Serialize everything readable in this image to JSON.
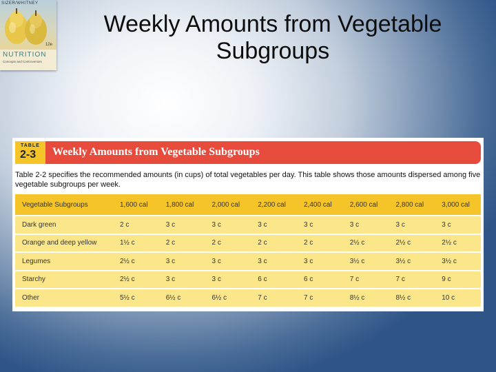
{
  "book": {
    "authors": "SIZER/WHITNEY",
    "title": "NUTRITION",
    "subtitle": "Concepts and Controversies",
    "edition": "12e"
  },
  "slide": {
    "title": "Weekly Amounts from Vegetable Subgroups"
  },
  "table": {
    "badge_label": "TABLE",
    "badge_number": "2-3",
    "title": "Weekly Amounts from Vegetable Subgroups",
    "description": "Table 2-2 specifies the recommended amounts (in cups) of total vegetables per day. This table shows those amounts dispersed among five vegetable subgroups per week.",
    "columns": [
      "Vegetable Subgroups",
      "1,600 cal",
      "1,800 cal",
      "2,000 cal",
      "2,200 cal",
      "2,400 cal",
      "2,600 cal",
      "2,800 cal",
      "3,000 cal"
    ],
    "rows": [
      [
        "Dark green",
        "2 c",
        "3 c",
        "3 c",
        "3 c",
        "3 c",
        "3 c",
        "3 c",
        "3 c"
      ],
      [
        "Orange and deep yellow",
        "1½ c",
        "2 c",
        "2 c",
        "2 c",
        "2 c",
        "2½ c",
        "2½ c",
        "2½ c"
      ],
      [
        "Legumes",
        "2½ c",
        "3 c",
        "3 c",
        "3 c",
        "3 c",
        "3½ c",
        "3½ c",
        "3½ c"
      ],
      [
        "Starchy",
        "2½ c",
        "3 c",
        "3 c",
        "6 c",
        "6 c",
        "7 c",
        "7 c",
        "9 c"
      ],
      [
        "Other",
        "5½ c",
        "6½ c",
        "6½ c",
        "7 c",
        "7 c",
        "8½ c",
        "8½ c",
        "10 c"
      ]
    ]
  },
  "colors": {
    "caption_red": "#e64b3b",
    "header_yellow": "#f5c428",
    "row_yellow": "#fbe78a"
  }
}
